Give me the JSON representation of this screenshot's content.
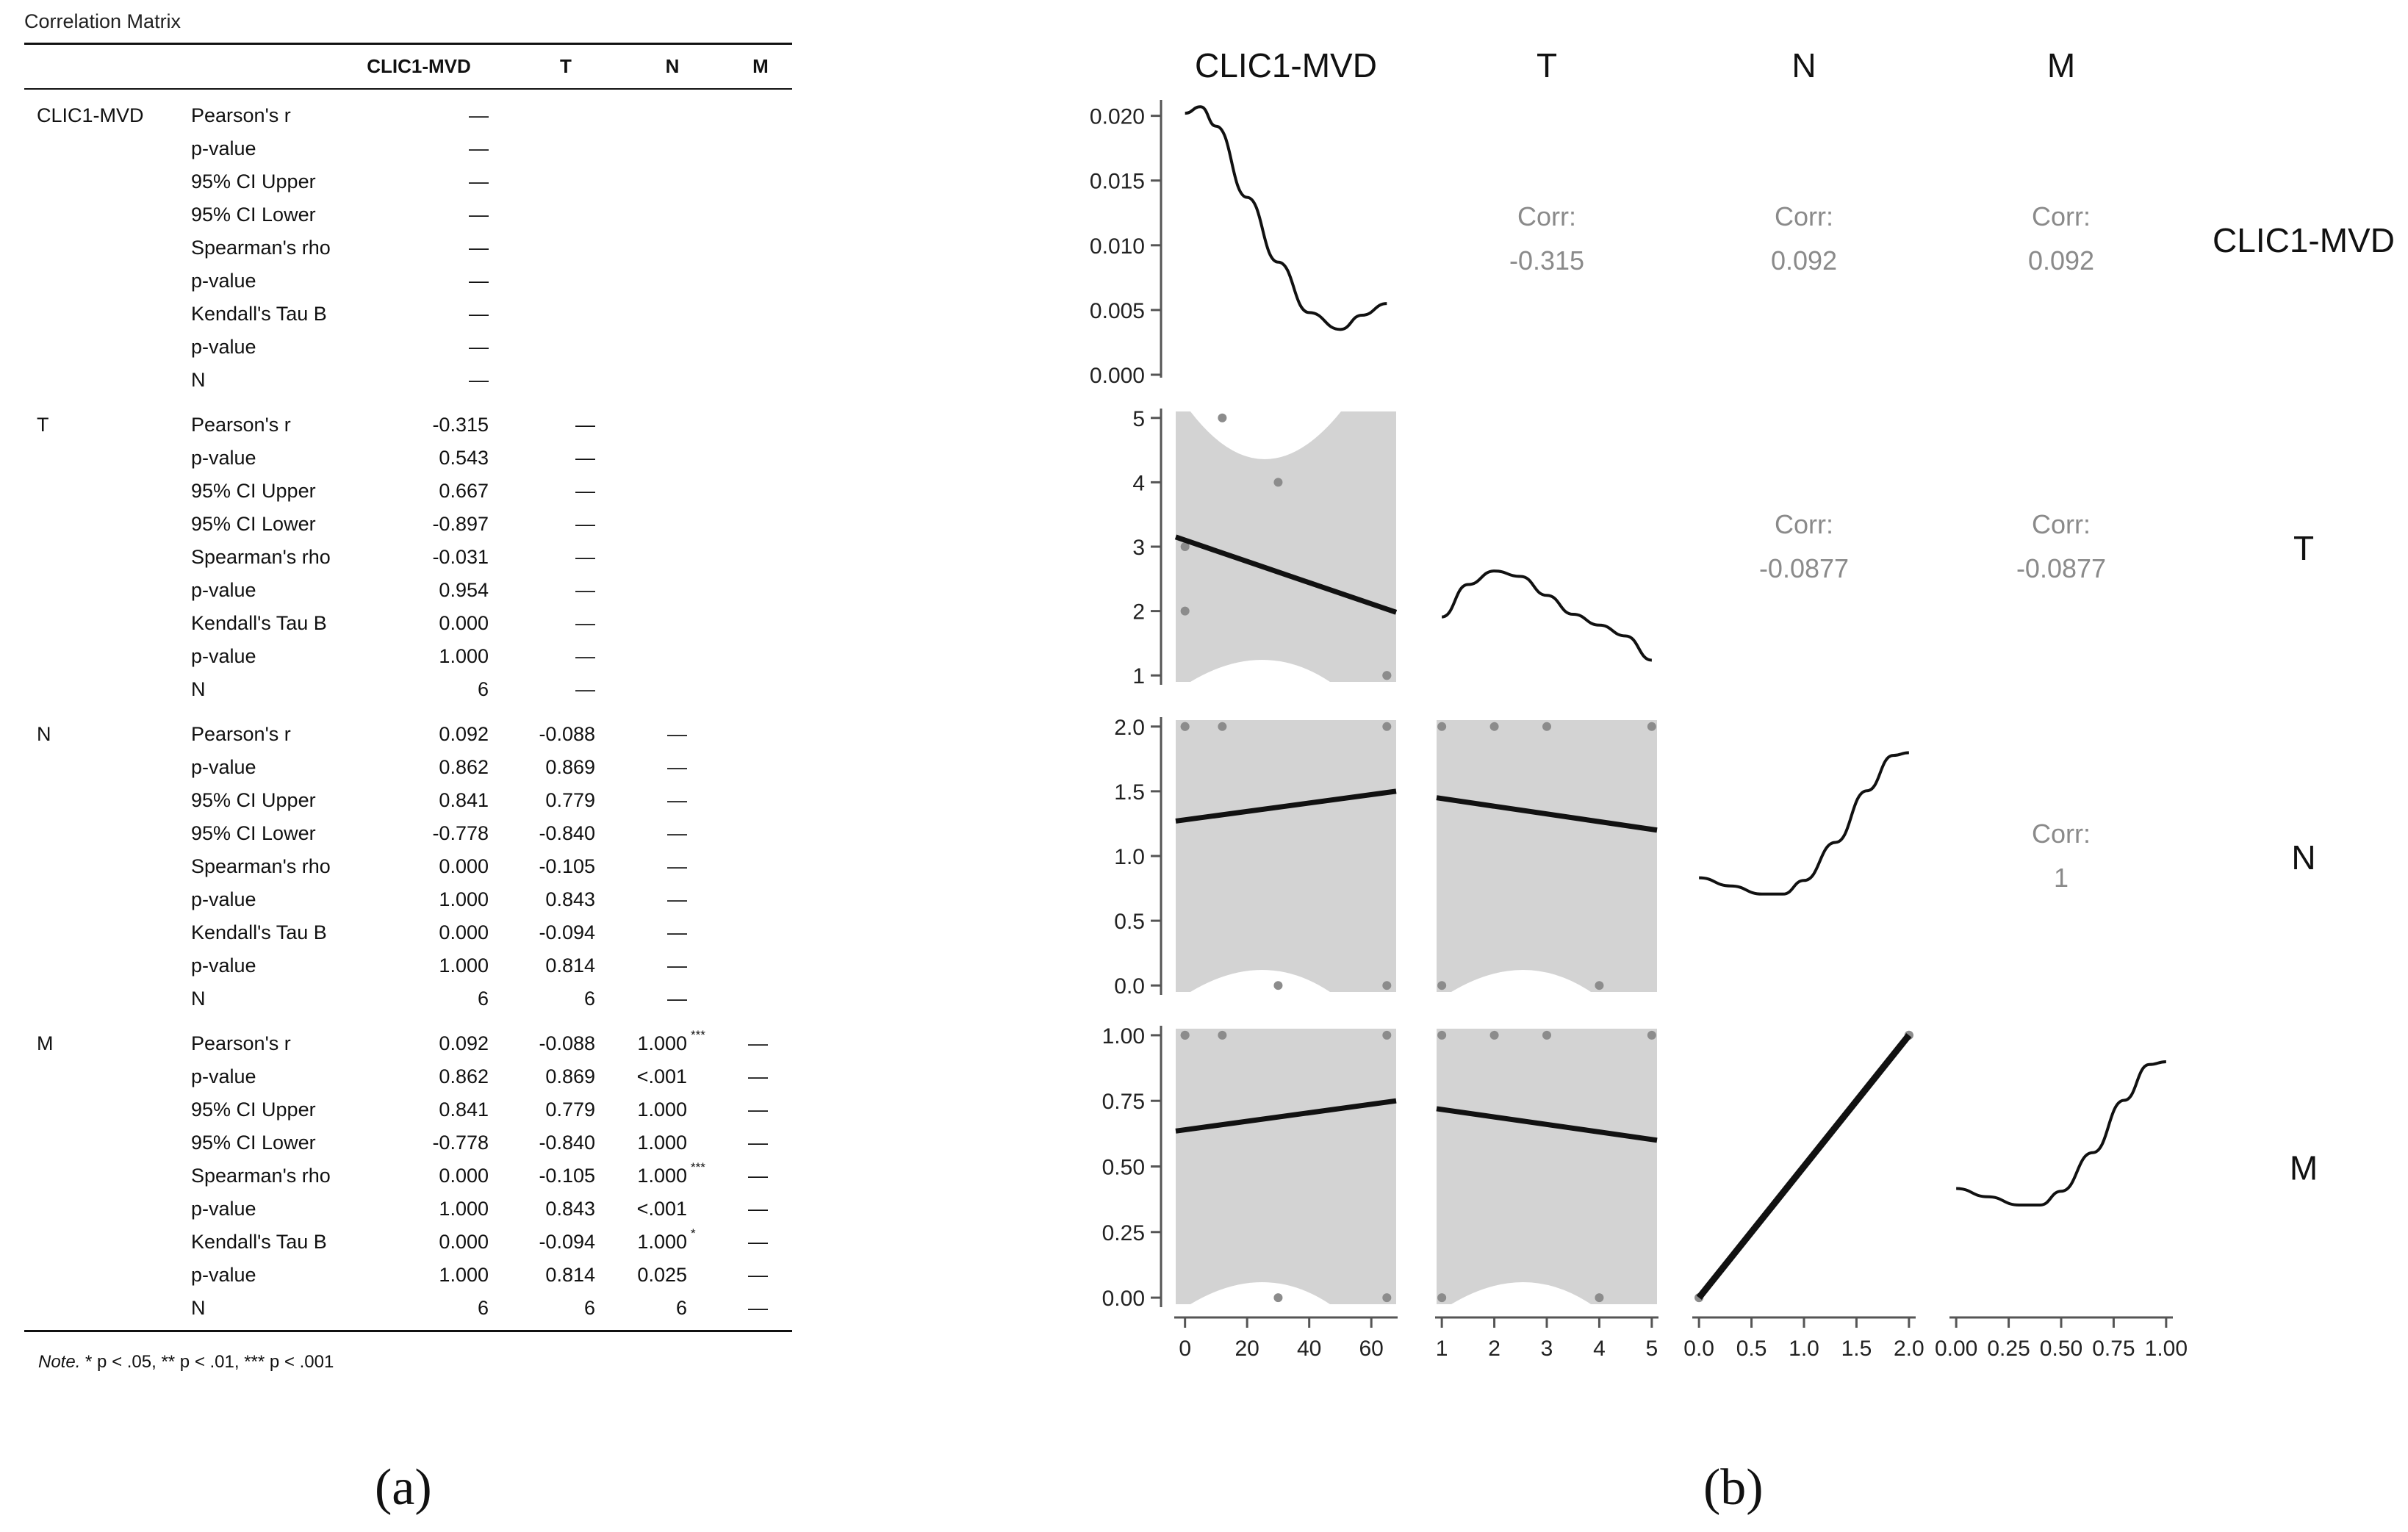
{
  "table": {
    "title": "Correlation Matrix",
    "columns": [
      "CLIC1-MVD",
      "T",
      "N",
      "M"
    ],
    "stat_labels": [
      "Pearson's r",
      "p-value",
      "95% CI Upper",
      "95% CI Lower",
      "Spearman's rho",
      "p-value",
      "Kendall's Tau B",
      "p-value",
      "N"
    ],
    "rows": [
      {
        "var": "CLIC1-MVD",
        "cells": [
          [
            "—",
            "—",
            "—",
            "—",
            "—",
            "—",
            "—",
            "—",
            "—"
          ]
        ]
      },
      {
        "var": "T",
        "cells": [
          [
            "-0.315",
            "0.543",
            "0.667",
            "-0.897",
            "-0.031",
            "0.954",
            "0.000",
            "1.000",
            "6"
          ],
          [
            "—",
            "—",
            "—",
            "—",
            "—",
            "—",
            "—",
            "—",
            "—"
          ]
        ]
      },
      {
        "var": "N",
        "cells": [
          [
            "0.092",
            "0.862",
            "0.841",
            "-0.778",
            "0.000",
            "1.000",
            "0.000",
            "1.000",
            "6"
          ],
          [
            "-0.088",
            "0.869",
            "0.779",
            "-0.840",
            "-0.105",
            "0.843",
            "-0.094",
            "0.814",
            "6"
          ],
          [
            "—",
            "—",
            "—",
            "—",
            "—",
            "—",
            "—",
            "—",
            "—"
          ]
        ]
      },
      {
        "var": "M",
        "cells": [
          [
            "0.092",
            "0.862",
            "0.841",
            "-0.778",
            "0.000",
            "1.000",
            "0.000",
            "1.000",
            "6"
          ],
          [
            "-0.088",
            "0.869",
            "0.779",
            "-0.840",
            "-0.105",
            "0.843",
            "-0.094",
            "0.814",
            "6"
          ],
          [
            "1.000",
            "<.001",
            "1.000",
            "1.000",
            "1.000",
            "<.001",
            "1.000",
            "0.025",
            "6"
          ],
          [
            "—",
            "—",
            "—",
            "—",
            "—",
            "—",
            "—",
            "—",
            "—"
          ]
        ]
      }
    ],
    "markers": {
      "M-N-0": "***",
      "M-N-4": "***",
      "M-N-6": "*"
    },
    "note_label": "Note.",
    "note_text": " * p < .05, ** p < .01, *** p < .001"
  },
  "captions": {
    "a": "(a)",
    "b": "(b)"
  },
  "chart_data": {
    "type": "scatter",
    "variables": [
      "CLIC1-MVD",
      "T",
      "N",
      "M"
    ],
    "column_titles": [
      "CLIC1-MVD",
      "T",
      "N",
      "M"
    ],
    "row_titles": [
      "CLIC1-MVD",
      "T",
      "N",
      "M"
    ],
    "points": {
      "CLIC1-MVD": [
        0,
        0,
        12,
        30,
        65,
        65
      ],
      "T": [
        3,
        2,
        5,
        4,
        1,
        1
      ],
      "N": [
        2,
        2,
        2,
        0,
        0,
        2
      ],
      "M": [
        1,
        1,
        1,
        0,
        0,
        1
      ]
    },
    "axes": {
      "CLIC1-MVD": {
        "range": [
          -3,
          68
        ],
        "ticks": [
          0,
          20,
          40,
          60
        ],
        "tick_labels": [
          "0",
          "20",
          "40",
          "60"
        ]
      },
      "T": {
        "range": [
          0.9,
          5.1
        ],
        "ticks": [
          1,
          2,
          3,
          4,
          5
        ],
        "tick_labels": [
          "1",
          "2",
          "3",
          "4",
          "5"
        ]
      },
      "N": {
        "range": [
          -0.05,
          2.05
        ],
        "ticks": [
          0,
          0.5,
          1,
          1.5,
          2
        ],
        "tick_labels": [
          "0.0",
          "0.5",
          "1.0",
          "1.5",
          "2.0"
        ]
      },
      "M": {
        "range": [
          -0.025,
          1.025
        ],
        "ticks": [
          0,
          0.25,
          0.5,
          0.75,
          1
        ],
        "tick_labels": [
          "0.00",
          "0.25",
          "0.50",
          "0.75",
          "1.00"
        ]
      }
    },
    "density": {
      "CLIC1-MVD": {
        "x": [
          0,
          5,
          10,
          20,
          30,
          40,
          50,
          57,
          65
        ],
        "y": [
          0.0202,
          0.0207,
          0.0192,
          0.0137,
          0.0087,
          0.0048,
          0.0035,
          0.0046,
          0.0055
        ]
      },
      "T": {
        "x": [
          1,
          1.5,
          2,
          2.5,
          3,
          3.5,
          4,
          4.5,
          5
        ],
        "y": [
          0.24,
          0.36,
          0.41,
          0.39,
          0.32,
          0.25,
          0.21,
          0.17,
          0.08
        ]
      },
      "N": {
        "x": [
          0,
          0.3,
          0.6,
          0.8,
          1.0,
          1.3,
          1.6,
          1.85,
          2.0
        ],
        "y": [
          0.42,
          0.39,
          0.36,
          0.36,
          0.41,
          0.55,
          0.74,
          0.87,
          0.88
        ]
      },
      "M": {
        "x": [
          0,
          0.15,
          0.3,
          0.4,
          0.5,
          0.65,
          0.8,
          0.92,
          1.0
        ],
        "y": [
          0.42,
          0.39,
          0.36,
          0.36,
          0.41,
          0.55,
          0.74,
          0.87,
          0.88
        ]
      }
    },
    "density_ylabels": [
      "0.020",
      "0.015",
      "0.010",
      "0.005",
      "0.000"
    ],
    "density_yticks": [
      0.02,
      0.015,
      0.01,
      0.005,
      0
    ],
    "fits": [
      {
        "row": "T",
        "col": "CLIC1-MVD",
        "y0": 3.15,
        "y1": 1.98,
        "band": [
          [
            0.9,
            5.1,
            4.6,
            5.1
          ],
          [
            0.9,
            1.6,
            1.1,
            0.9
          ]
        ]
      },
      {
        "row": "N",
        "col": "CLIC1-MVD",
        "y0": 1.27,
        "y1": 1.5
      },
      {
        "row": "N",
        "col": "T",
        "y0": 1.45,
        "y1": 1.2
      },
      {
        "row": "M",
        "col": "CLIC1-MVD",
        "y0": 0.635,
        "y1": 0.75
      },
      {
        "row": "M",
        "col": "T",
        "y0": 0.72,
        "y1": 0.6
      },
      {
        "row": "M",
        "col": "N",
        "y0": 0.0,
        "y1": 1.0,
        "bold": true
      }
    ],
    "correlations": [
      {
        "row": "CLIC1-MVD",
        "col": "T",
        "label": "Corr:",
        "value": "-0.315"
      },
      {
        "row": "CLIC1-MVD",
        "col": "N",
        "label": "Corr:",
        "value": "0.092"
      },
      {
        "row": "CLIC1-MVD",
        "col": "M",
        "label": "Corr:",
        "value": "0.092"
      },
      {
        "row": "T",
        "col": "N",
        "label": "Corr:",
        "value": "-0.0877"
      },
      {
        "row": "T",
        "col": "M",
        "label": "Corr:",
        "value": "-0.0877"
      },
      {
        "row": "N",
        "col": "M",
        "label": "Corr:",
        "value": "1"
      }
    ],
    "colors": {
      "band": "#d3d3d3",
      "point": "#8c8c8c",
      "line": "#111111",
      "corr_text": "#8a8a8a",
      "axis": "#555555"
    }
  }
}
